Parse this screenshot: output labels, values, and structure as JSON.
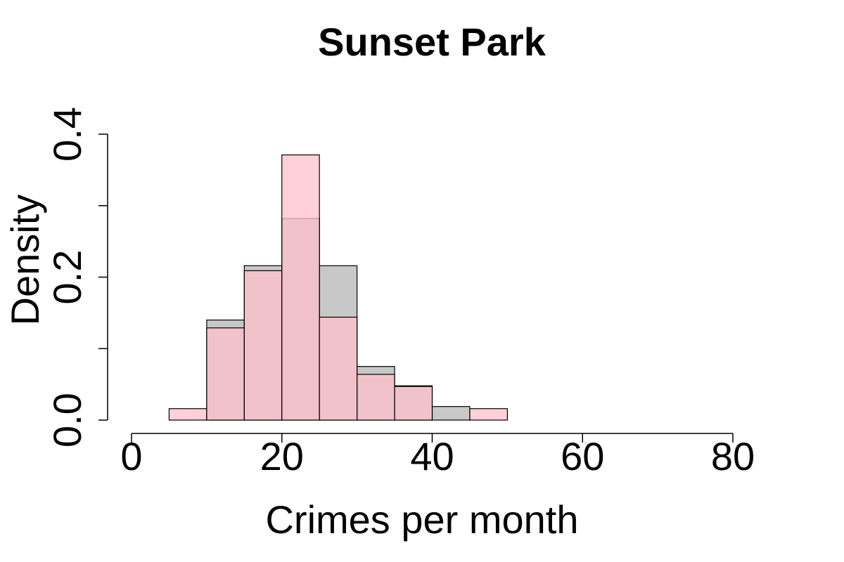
{
  "chart_data": {
    "type": "histogram",
    "title": "Sunset Park",
    "xlabel": "Crimes per month",
    "ylabel": "Density",
    "bins": [
      0,
      5,
      10,
      15,
      20,
      25,
      30,
      35,
      40,
      45,
      50
    ],
    "series": [
      {
        "color": "#c8c8c8",
        "opacity": 1,
        "values": [
          0,
          0,
          0.14,
          0.216,
          0.282,
          0.216,
          0.075,
          0.048,
          0.019,
          0
        ]
      },
      {
        "color": "#ffc0cb",
        "opacity": 0.75,
        "values": [
          0,
          0.016,
          0.129,
          0.209,
          0.371,
          0.144,
          0.064,
          0.047,
          0,
          0.016
        ]
      }
    ],
    "xlim": [
      0,
      80
    ],
    "xticks": [
      0,
      20,
      40,
      60,
      80
    ],
    "ylim": [
      0,
      0.4
    ],
    "yticks": [
      {
        "value": 0,
        "label": "0.0"
      },
      {
        "value": 0.1,
        "label": null
      },
      {
        "value": 0.2,
        "label": "0.2"
      },
      {
        "value": 0.3,
        "label": null
      },
      {
        "value": 0.4,
        "label": "0.4"
      }
    ]
  }
}
